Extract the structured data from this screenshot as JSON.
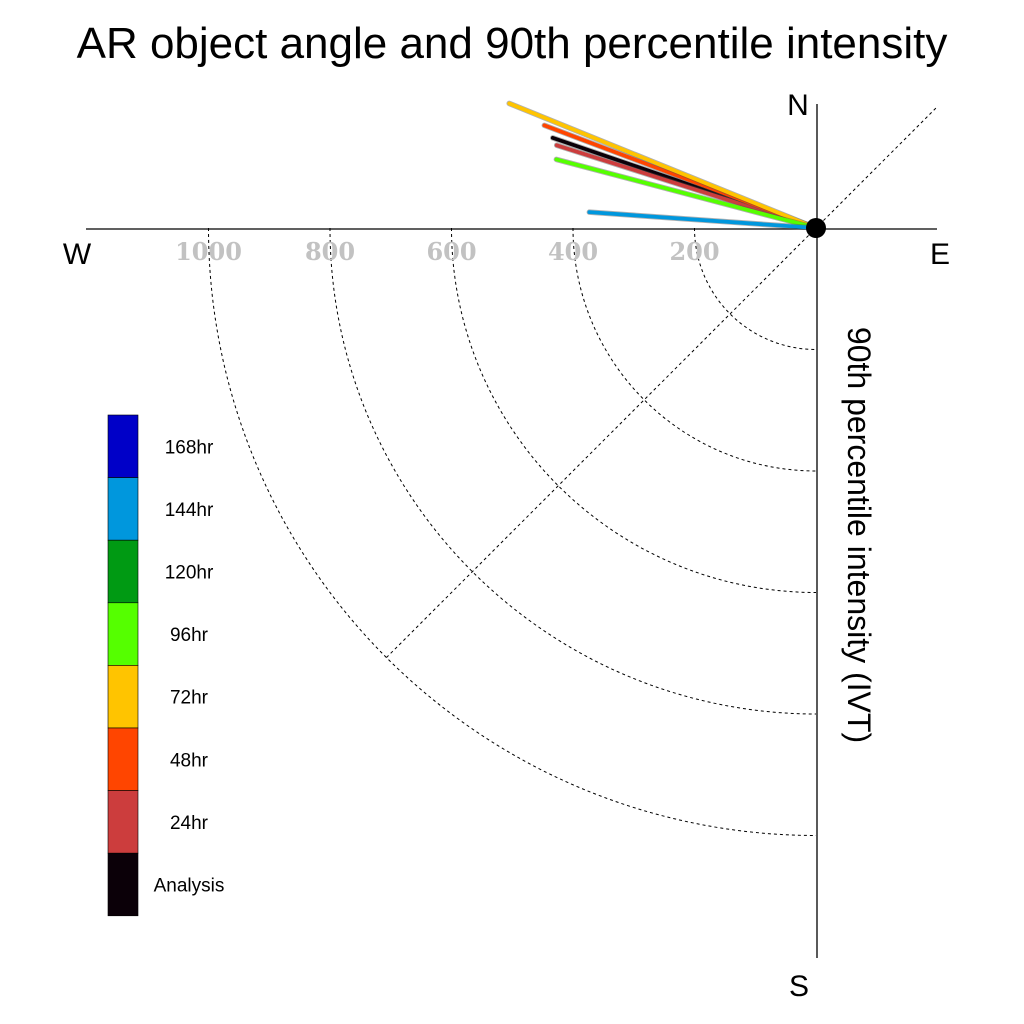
{
  "chart_data": {
    "type": "polar-quadrant-line",
    "title": "AR object angle and 90th percentile intensity",
    "ylabel": "90th percentile intensity (IVT)",
    "directions": {
      "north": "N",
      "south": "S",
      "west": "W",
      "east": "E"
    },
    "rings": [
      200,
      400,
      600,
      800,
      1000
    ],
    "tick_labels": [
      "1000",
      "800",
      "600",
      "400",
      "200"
    ],
    "radial_max": 1000,
    "grid": true,
    "diagonal_guide": true,
    "legend_position": "left",
    "series": [
      {
        "name": "Analysis",
        "color": "#0b0008",
        "angle_deg": 161.1,
        "intensity": 458
      },
      {
        "name": "24hr",
        "color": "#cc3d3d",
        "angle_deg": 162.3,
        "intensity": 448
      },
      {
        "name": "48hr",
        "color": "#ff4500",
        "angle_deg": 159.3,
        "intensity": 478
      },
      {
        "name": "72hr",
        "color": "#ffc400",
        "angle_deg": 157.9,
        "intensity": 545
      },
      {
        "name": "96hr",
        "color": "#55ff00",
        "angle_deg": 165.2,
        "intensity": 442
      },
      {
        "name": "144hr",
        "color": "#0097dd",
        "angle_deg": 176.0,
        "intensity": 374
      }
    ],
    "legend": [
      {
        "label": "168hr",
        "color": "#0000c8"
      },
      {
        "label": "144hr",
        "color": "#0097dd"
      },
      {
        "label": "120hr",
        "color": "#009a13"
      },
      {
        "label": "96hr",
        "color": "#55ff00"
      },
      {
        "label": "72hr",
        "color": "#ffc400"
      },
      {
        "label": "48hr",
        "color": "#ff4500"
      },
      {
        "label": "24hr",
        "color": "#cc3d3d"
      },
      {
        "label": "Analysis",
        "color": "#0b0008"
      }
    ]
  }
}
